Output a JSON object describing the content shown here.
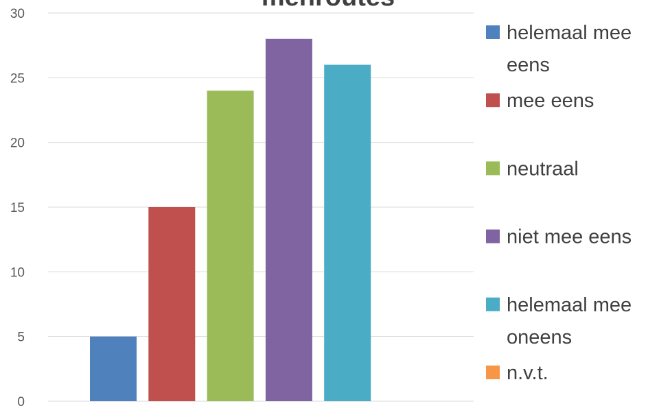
{
  "chart_data": {
    "type": "bar",
    "title": "menroutes",
    "categories": [
      null
    ],
    "series": [
      {
        "name": "helemaal mee eens",
        "color": "#4f81bd",
        "values": [
          5
        ]
      },
      {
        "name": "mee eens",
        "color": "#c0504d",
        "values": [
          15
        ]
      },
      {
        "name": "neutraal",
        "color": "#9bbb59",
        "values": [
          24
        ]
      },
      {
        "name": "niet mee eens",
        "color": "#8064a2",
        "values": [
          28
        ]
      },
      {
        "name": "helemaal mee oneens",
        "color": "#4bacc6",
        "values": [
          26
        ]
      },
      {
        "name": "n.v.t.",
        "color": "#f79646",
        "values": [
          0
        ]
      }
    ],
    "ylim": [
      0,
      30
    ],
    "yticks": [
      0,
      5,
      10,
      15,
      20,
      25,
      30
    ],
    "grid": true,
    "legend": "right"
  }
}
